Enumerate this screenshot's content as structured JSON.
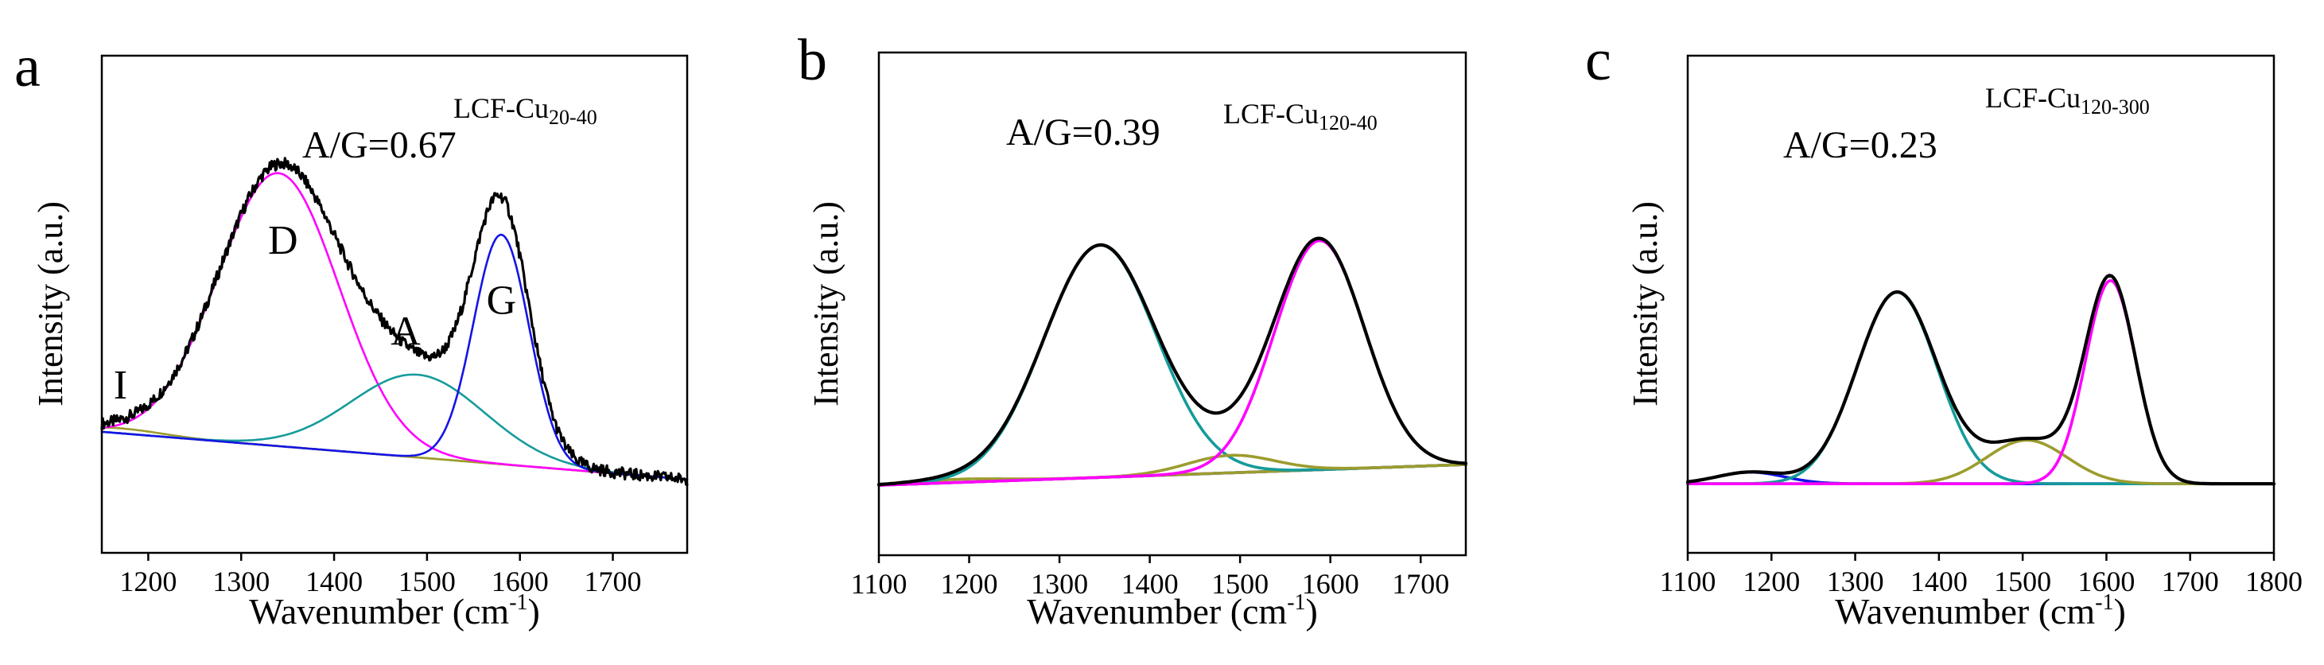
{
  "chart_data": [
    {
      "type": "line",
      "panel": "a",
      "title": "LCF-Cu20-40",
      "sample_base": "LCF-Cu",
      "sample_sub": "20-40",
      "annotation": "A/G=0.67",
      "xlabel": "Wavenumber (cm-1)",
      "xlabel_main": "Wavenumber (cm",
      "xlabel_sup": "-1",
      "xlabel_end": ")",
      "ylabel": "Intensity (a.u.)",
      "xlim": [
        1150,
        1780
      ],
      "ylim": [
        0,
        1.0
      ],
      "xticks": [
        1200,
        1300,
        1400,
        1500,
        1600,
        1700
      ],
      "grid": false,
      "peak_labels": [
        {
          "text": "I",
          "x": 1170,
          "y": 0.315
        },
        {
          "text": "D",
          "x": 1345,
          "y": 0.665
        },
        {
          "text": "A",
          "x": 1477,
          "y": 0.445
        },
        {
          "text": "G",
          "x": 1580,
          "y": 0.52
        }
      ],
      "series": [
        {
          "name": "baseline",
          "color": "#9c9c2e",
          "kind": "linear",
          "x0": 1150,
          "y0": 0.235,
          "x1": 1780,
          "y1": 0.12
        },
        {
          "name": "I",
          "color": "#9c9c2e",
          "kind": "gauss",
          "center": 1170,
          "amp": 0.012,
          "width": 45
        },
        {
          "name": "D",
          "color": "#ff00ff",
          "kind": "gauss",
          "center": 1340,
          "amp": 0.66,
          "width": 65
        },
        {
          "name": "A",
          "color": "#169b9b",
          "kind": "gauss",
          "center": 1490,
          "amp": 0.2,
          "width": 72
        },
        {
          "name": "G",
          "color": "#1414e6",
          "kind": "gauss",
          "center": 1580,
          "amp": 0.555,
          "width": 30
        },
        {
          "name": "measured",
          "color": "#000000",
          "kind": "sum",
          "noise": 0.014
        }
      ]
    },
    {
      "type": "line",
      "panel": "b",
      "title": "LCF-Cu120-40",
      "sample_base": "LCF-Cu",
      "sample_sub": "120-40",
      "annotation": "A/G=0.39",
      "xlabel": "Wavenumber (cm-1)",
      "xlabel_main": "Wavenumber (cm",
      "xlabel_sup": "-1",
      "xlabel_end": ")",
      "ylabel": "Intensity (a.u.)",
      "xlim": [
        1100,
        1750
      ],
      "ylim": [
        0,
        1.0
      ],
      "xticks": [
        1100,
        1200,
        1300,
        1400,
        1500,
        1600,
        1700
      ],
      "grid": false,
      "peak_labels": [],
      "series": [
        {
          "name": "baseline",
          "color": "#1414e6",
          "kind": "linear",
          "x0": 1100,
          "y0": 0.0,
          "x1": 1750,
          "y1": 0.065
        },
        {
          "name": "I",
          "color": "#9c9c2e",
          "kind": "gauss",
          "center": 1190,
          "amp": 0.01,
          "width": 50
        },
        {
          "name": "D",
          "color": "#169b9b",
          "kind": "gauss",
          "center": 1345,
          "amp": 0.73,
          "width": 62
        },
        {
          "name": "A",
          "color": "#9c9c2e",
          "kind": "gauss",
          "center": 1490,
          "amp": 0.055,
          "width": 48
        },
        {
          "name": "G",
          "color": "#ff00ff",
          "kind": "gauss",
          "center": 1588,
          "amp": 0.72,
          "width": 50
        },
        {
          "name": "measured",
          "color": "#000000",
          "kind": "sum",
          "noise": 0
        }
      ]
    },
    {
      "type": "line",
      "panel": "c",
      "title": "LCF-Cu120-300",
      "sample_base": "LCF-Cu",
      "sample_sub": "120-300",
      "annotation": "A/G=0.23",
      "xlabel": "Wavenumber (cm-1)",
      "xlabel_main": "Wavenumber (cm",
      "xlabel_sup": "-1",
      "xlabel_end": ")",
      "ylabel": "Intensity (a.u.)",
      "xlim": [
        1100,
        1800
      ],
      "ylim": [
        0,
        1.0
      ],
      "xticks": [
        1100,
        1200,
        1300,
        1400,
        1500,
        1600,
        1700,
        1800
      ],
      "grid": false,
      "peak_labels": [],
      "series": [
        {
          "name": "baseline",
          "color": "#1414e6",
          "kind": "linear",
          "x0": 1100,
          "y0": 0.005,
          "x1": 1800,
          "y1": 0.005
        },
        {
          "name": "I",
          "color": "#1414e6",
          "kind": "gauss",
          "center": 1175,
          "amp": 0.04,
          "width": 40
        },
        {
          "name": "D",
          "color": "#169b9b",
          "kind": "gauss",
          "center": 1350,
          "amp": 0.66,
          "width": 48
        },
        {
          "name": "A",
          "color": "#9c9c2e",
          "kind": "gauss",
          "center": 1505,
          "amp": 0.15,
          "width": 48
        },
        {
          "name": "G",
          "color": "#ff00ff",
          "kind": "gauss",
          "center": 1605,
          "amp": 0.7,
          "width": 30
        },
        {
          "name": "measured",
          "color": "#000000",
          "kind": "sum",
          "noise": 0
        }
      ]
    }
  ]
}
